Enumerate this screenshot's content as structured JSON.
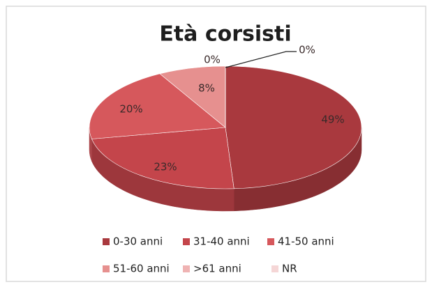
{
  "chart_data": {
    "type": "pie",
    "title": "Età corsisti",
    "categories": [
      "0-30 anni",
      "31-40 anni",
      "41-50 anni",
      "51-60 anni",
      ">61 anni",
      "NR"
    ],
    "values": [
      49,
      23,
      20,
      8,
      0,
      0
    ],
    "value_labels": [
      "49%",
      "23%",
      "20%",
      "8%",
      "0%",
      "0%"
    ],
    "colors": [
      "#a9393e",
      "#c4454b",
      "#d6585c",
      "#e6908f",
      "#efb3b3",
      "#f5d6d6"
    ],
    "legend": "bottom"
  }
}
